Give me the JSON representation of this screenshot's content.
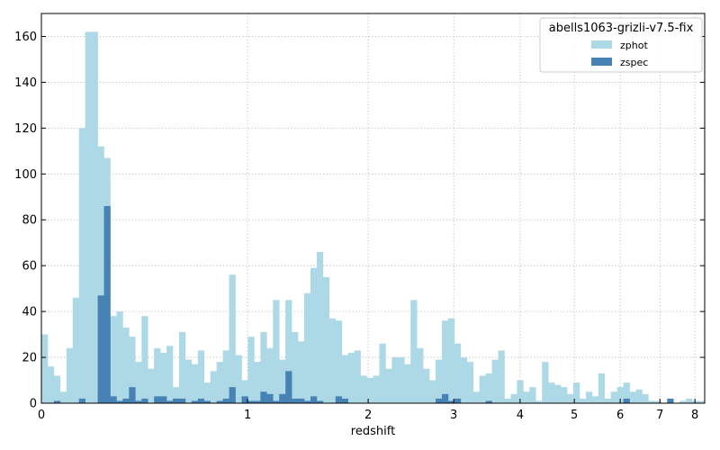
{
  "chart_data": {
    "type": "bar",
    "xlabel": "redshift",
    "ylabel": "",
    "x_scale": "log(1+z)",
    "xlim": [
      0,
      8.3
    ],
    "ylim": [
      0,
      170
    ],
    "x_ticks": [
      0,
      1,
      2,
      3,
      4,
      5,
      6,
      7,
      8
    ],
    "x_tick_labels": [
      "0",
      "1",
      "2",
      "3",
      "4",
      "5",
      "6",
      "7",
      "8"
    ],
    "y_ticks": [
      0,
      20,
      40,
      60,
      80,
      100,
      120,
      140,
      160
    ],
    "y_tick_labels": [
      "0",
      "20",
      "40",
      "60",
      "80",
      "100",
      "120",
      "140",
      "160"
    ],
    "grid": true,
    "legend": {
      "title": "abells1063-grizli-v7.5-fix",
      "position": "top-right"
    },
    "series": [
      {
        "name": "zphot",
        "color": "#add8e6",
        "values": [
          30,
          16,
          12,
          5,
          24,
          46,
          120,
          162,
          162,
          112,
          107,
          38,
          40,
          33,
          29,
          18,
          38,
          15,
          24,
          22,
          25,
          7,
          31,
          19,
          17,
          23,
          9,
          14,
          18,
          23,
          56,
          21,
          10,
          29,
          18,
          31,
          24,
          45,
          19,
          45,
          31,
          27,
          48,
          59,
          66,
          55,
          37,
          36,
          21,
          22,
          23,
          12,
          11,
          12,
          26,
          15,
          20,
          20,
          17,
          45,
          24,
          15,
          10,
          19,
          36,
          37,
          26,
          20,
          18,
          5,
          12,
          13,
          19,
          23,
          2,
          4,
          10,
          5,
          7,
          1,
          18,
          9,
          8,
          7,
          4,
          9,
          2,
          5,
          3,
          13,
          2,
          5,
          7,
          9,
          5,
          6,
          4,
          1,
          1,
          0,
          1,
          0,
          1,
          2,
          1,
          1
        ]
      },
      {
        "name": "zspec",
        "color": "#4682b4",
        "values": [
          0,
          0,
          1,
          0,
          0,
          0,
          2,
          0,
          0,
          47,
          86,
          3,
          1,
          2,
          7,
          1,
          2,
          0,
          3,
          3,
          1,
          2,
          2,
          0,
          1,
          2,
          1,
          0,
          1,
          2,
          7,
          0,
          3,
          1,
          1,
          5,
          4,
          1,
          4,
          14,
          2,
          2,
          1,
          3,
          1,
          0,
          0,
          3,
          2,
          0,
          0,
          0,
          0,
          0,
          0,
          0,
          0,
          0,
          0,
          0,
          0,
          0,
          0,
          2,
          4,
          1,
          2,
          0,
          0,
          0,
          0,
          1,
          0,
          0,
          0,
          0,
          0,
          0,
          0,
          0,
          0,
          0,
          0,
          0,
          0,
          0,
          0,
          0,
          0,
          0,
          0,
          0,
          0,
          2,
          0,
          0,
          0,
          0,
          0,
          0,
          2,
          0,
          0,
          0,
          0,
          0
        ]
      }
    ]
  }
}
